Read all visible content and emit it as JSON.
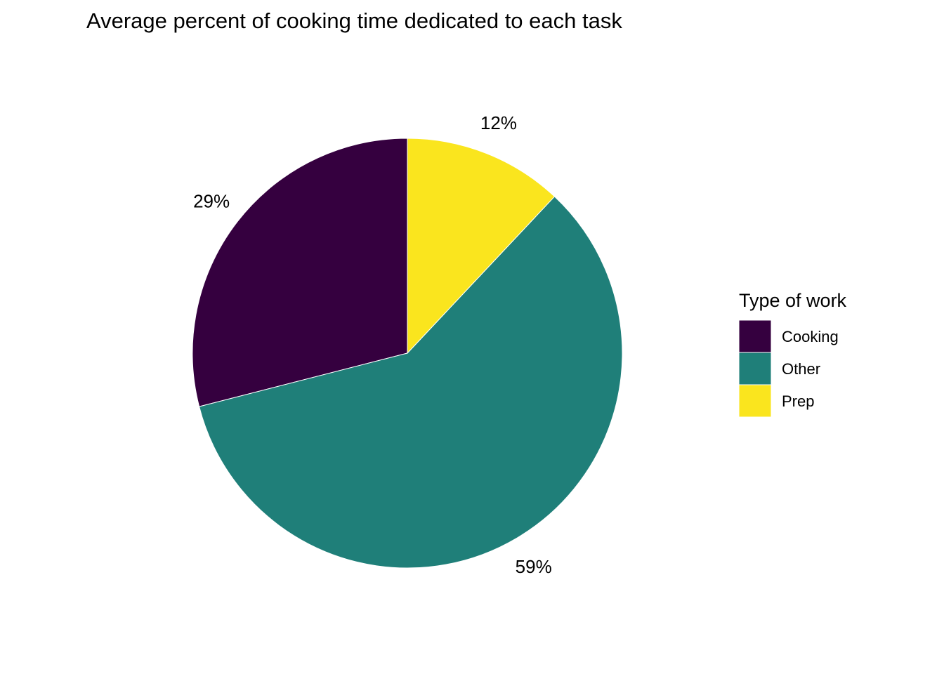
{
  "chart_data": {
    "type": "pie",
    "title": "Average percent of cooking time dedicated to each task",
    "legend_title": "Type of work",
    "legend_position": "right",
    "categories": [
      "Cooking",
      "Other",
      "Prep"
    ],
    "values": [
      29,
      59,
      12
    ],
    "value_labels": [
      "29%",
      "59%",
      "12%"
    ],
    "colors": [
      "#35003F",
      "#1F7F79",
      "#FAE51E"
    ]
  }
}
